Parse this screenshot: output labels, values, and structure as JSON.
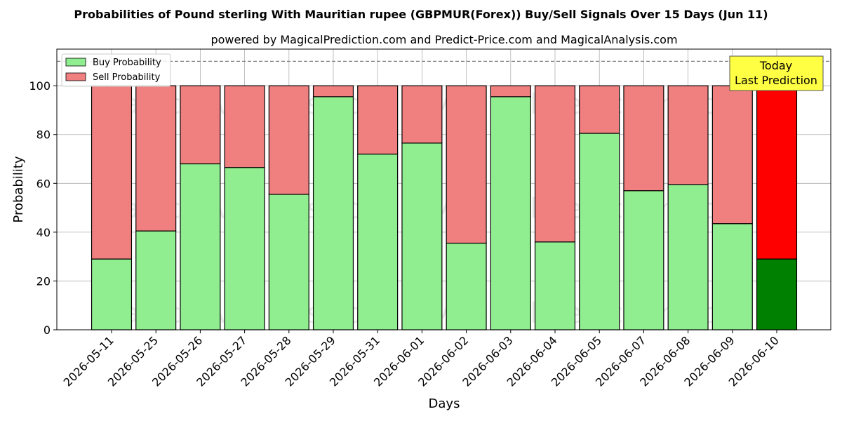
{
  "chart_data": {
    "type": "bar",
    "stacked": true,
    "title": "Probabilities of Pound sterling With Mauritian rupee (GBPMUR(Forex)) Buy/Sell Signals Over 15 Days (Jun 11)",
    "subtitle": "powered by MagicalPrediction.com and Predict-Price.com and MagicalAnalysis.com",
    "xlabel": "Days",
    "ylabel": "Probability",
    "ylim": [
      0,
      115
    ],
    "yticks": [
      0,
      20,
      40,
      60,
      80,
      100
    ],
    "reference_line": 110,
    "grid": true,
    "legend_position": "top-left",
    "categories": [
      "2026-05-11",
      "2026-05-25",
      "2026-05-26",
      "2026-05-27",
      "2026-05-28",
      "2026-05-29",
      "2026-05-31",
      "2026-06-01",
      "2026-06-02",
      "2026-06-03",
      "2026-06-04",
      "2026-06-05",
      "2026-06-07",
      "2026-06-08",
      "2026-06-09",
      "2026-06-10"
    ],
    "series": [
      {
        "name": "Buy Probability",
        "color": "#90ee90",
        "highlight_color": "#008000",
        "values": [
          29,
          40.5,
          68,
          66.5,
          55.5,
          95.5,
          72,
          76.5,
          35.5,
          95.5,
          36,
          80.5,
          57,
          59.5,
          43.5,
          29
        ]
      },
      {
        "name": "Sell Probability",
        "color": "#f08080",
        "highlight_color": "#ff0000",
        "values": [
          71,
          59.5,
          32,
          33.5,
          44.5,
          4.5,
          28,
          23.5,
          64.5,
          4.5,
          64,
          19.5,
          43,
          40.5,
          56.5,
          71
        ]
      }
    ],
    "highlight_index": 15,
    "annotation": {
      "lines": [
        "Today",
        "Last Prediction"
      ],
      "background": "#ffff44"
    },
    "watermarks": [
      "MagicalAnalysis.com",
      "MagicalPrediction.com"
    ]
  }
}
